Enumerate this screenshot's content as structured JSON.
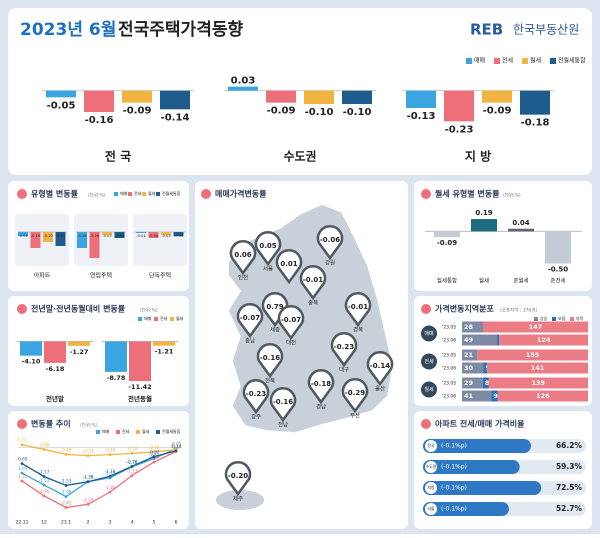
{
  "header": {
    "title_date": "2023년 6월",
    "title": "전국주택가격동향",
    "logo": "REB",
    "org": "한국부동산원"
  },
  "chart_data": [
    {
      "type": "bar",
      "categories": [
        "전 국",
        "수도권",
        "지 방"
      ],
      "ylim": [
        -0.25,
        0.05
      ],
      "series": [
        {
          "name": "매매",
          "color": "#3aa5e0",
          "values": [
            -0.05,
            0.03,
            -0.13
          ],
          "value_labels": [
            "-0.05",
            "0.03",
            "-0.13"
          ]
        },
        {
          "name": "전세",
          "color": "#ec6f7a",
          "values": [
            -0.16,
            -0.09,
            -0.23
          ],
          "value_labels": [
            "-0.16",
            "-0.09",
            "-0.23"
          ]
        },
        {
          "name": "월세",
          "color": "#f2b441",
          "values": [
            -0.09,
            -0.1,
            -0.09
          ],
          "value_labels": [
            "-0.09",
            "-0.10",
            "-0.09"
          ]
        },
        {
          "name": "전월세통합",
          "color": "#1e5c8e",
          "values": [
            -0.14,
            -0.1,
            -0.18
          ],
          "value_labels": [
            "-0.14",
            "-0.10",
            "-0.18"
          ]
        }
      ]
    },
    {
      "type": "bar",
      "title": "유형별 변동률",
      "unit": "(단위:%)",
      "categories": [
        "아파트",
        "연립주택",
        "단독주택"
      ],
      "ylim": [
        -0.3,
        0.05
      ],
      "series": [
        {
          "name": "매매",
          "color": "#3aa5e0",
          "values": [
            -0.04,
            -0.16,
            -0.01
          ],
          "value_labels": [
            "-0.04",
            "-0.16",
            "-0.01"
          ]
        },
        {
          "name": "전세",
          "color": "#ec6f7a",
          "values": [
            -0.16,
            -0.26,
            -0.06
          ],
          "value_labels": [
            "-0.16",
            "-0.26",
            "-0.06"
          ]
        },
        {
          "name": "월세",
          "color": "#f2b441",
          "values": [
            -0.1,
            -0.03,
            -0.03
          ],
          "value_labels": [
            "-0.10",
            "-0.03",
            "-0.03"
          ]
        },
        {
          "name": "전월세통합",
          "color": "#1e5c8e",
          "values": [
            -0.14,
            -0.06,
            -0.04
          ],
          "value_labels": [
            "-0.14",
            "-0.06",
            "-0.04"
          ]
        }
      ]
    },
    {
      "type": "bar",
      "title": "전년말·전년동월대비 변동률",
      "unit": "(단위:%)",
      "categories": [
        "전년말",
        "전년동월"
      ],
      "ylim": [
        -14,
        1
      ],
      "series": [
        {
          "name": "매매",
          "color": "#3aa5e0",
          "values": [
            -4.1,
            -8.78
          ],
          "value_labels": [
            "-4.10",
            "-8.78"
          ]
        },
        {
          "name": "전세",
          "color": "#ec6f7a",
          "values": [
            -6.18,
            -11.42
          ],
          "value_labels": [
            "-6.18",
            "-11.42"
          ]
        },
        {
          "name": "월세",
          "color": "#f2b441",
          "values": [
            -1.27,
            -1.21
          ],
          "value_labels": [
            "-1.27",
            "-1.21"
          ]
        }
      ]
    },
    {
      "type": "line",
      "title": "변동률 추이",
      "unit": "(단위:%)",
      "categories": [
        "22.11",
        "12",
        "23.1",
        "2",
        "3",
        "4",
        "5",
        "6"
      ],
      "ylim": [
        -2.6,
        0.3
      ],
      "series": [
        {
          "name": "매매",
          "color": "#3aa5e0",
          "values": [
            -1.03,
            -1.51,
            -1.98,
            -1.38,
            -1.22,
            -0.78,
            -0.45,
            -0.05
          ],
          "value_labels": [
            "-1.03",
            "-1.51",
            "-1.98",
            "-1.38",
            "-1.22",
            "-0.78",
            "-0.45",
            "-0.05"
          ]
        },
        {
          "name": "전세",
          "color": "#ec6f7a",
          "values": [
            -1.35,
            -1.95,
            -2.42,
            -2.29,
            -1.8,
            -1.13,
            -0.59,
            -0.16
          ],
          "value_labels": [
            "-1.35",
            "-1.95",
            "-2.42",
            "-2.29",
            "-1.80",
            "-1.13",
            "-0.59",
            "-0.16"
          ]
        },
        {
          "name": "월세",
          "color": "#f2b441",
          "values": [
            0.11,
            -0.08,
            -0.28,
            -0.33,
            -0.29,
            -0.24,
            -0.18,
            -0.09
          ],
          "value_labels": [
            "0.11",
            "-0.08",
            "-0.28",
            "-0.33",
            "-0.29",
            "-0.24",
            "-0.18",
            "-0.09"
          ]
        },
        {
          "name": "전월세통합",
          "color": "#1e5c8e",
          "values": [
            -0.65,
            -1.17,
            -1.53,
            -1.38,
            -1.16,
            -0.76,
            -0.37,
            -0.14
          ],
          "value_labels": [
            "-0.65",
            "-1.17",
            "-1.53",
            "-1.38",
            "-1.16",
            "-0.76",
            "-0.37",
            "-0.14"
          ]
        }
      ]
    },
    {
      "type": "map",
      "title": "매매가격변동률",
      "categories": [
        "인천",
        "서울",
        null,
        "강원",
        "충북",
        "세종",
        "충남",
        "대전",
        "경북",
        "전북",
        "대구",
        "울산",
        "광주",
        "전남",
        "경남",
        "부산",
        "제주"
      ],
      "values": [
        0.06,
        0.05,
        0.01,
        -0.06,
        -0.01,
        0.79,
        -0.07,
        -0.07,
        -0.01,
        -0.16,
        -0.23,
        -0.14,
        -0.23,
        -0.16,
        -0.18,
        -0.29,
        -0.2
      ],
      "value_labels": [
        "0.06",
        "0.05",
        "0.01",
        "-0.06",
        "-0.01",
        "0.79",
        "-0.07",
        "-0.07",
        "-0.01",
        "-0.16",
        "-0.23",
        "-0.14",
        "-0.23",
        "-0.16",
        "-0.18",
        "-0.29",
        "-0.20"
      ]
    },
    {
      "type": "bar",
      "title": "월세 유형별 변동률",
      "unit": "(단위:%)",
      "categories": [
        "월세통합",
        "월세",
        "준월세",
        "준전세"
      ],
      "ylim": [
        -0.6,
        0.3
      ],
      "values": [
        -0.09,
        0.19,
        0.04,
        -0.5
      ],
      "value_labels": [
        "-0.09",
        "0.19",
        "0.04",
        "-0.50"
      ],
      "colors": [
        "#c5ccd6",
        "#1e6a7e",
        "#5b6470",
        "#c5ccd6"
      ]
    },
    {
      "type": "stacked_bar",
      "title": "가격변동지역분포",
      "subtitle": "(공표지역 : 176개)",
      "xlim": [
        0,
        176
      ],
      "groups": [
        "매매",
        "전세",
        "월세"
      ],
      "categories": [
        "'23.05",
        "'23.06",
        "'23.05",
        "'23.06",
        "'23.05",
        "'23.06"
      ],
      "series": [
        {
          "name": "상승",
          "color": "#7c8aa5",
          "values": [
            28,
            49,
            21,
            30,
            29,
            41
          ]
        },
        {
          "name": "보합",
          "color": "#2e6fb7",
          "values": [
            1,
            3,
            0,
            5,
            8,
            9
          ]
        },
        {
          "name": "하락",
          "color": "#eb7c86",
          "values": [
            147,
            124,
            155,
            141,
            139,
            126
          ]
        }
      ]
    },
    {
      "type": "progress",
      "title": "아파트 전세/매매 가격비율",
      "xlim": [
        0,
        100
      ],
      "color": "#2f78c4",
      "categories": [
        "전국",
        "수도권",
        "지방",
        "서울"
      ],
      "notes": [
        "(-0.1%p)",
        "(-0.1%p)",
        "(-0.1%p)",
        "(-0.1%p)"
      ],
      "values": [
        66.2,
        59.3,
        72.5,
        52.7
      ],
      "value_labels": [
        "66.2%",
        "59.3%",
        "72.5%",
        "52.7%"
      ]
    }
  ]
}
